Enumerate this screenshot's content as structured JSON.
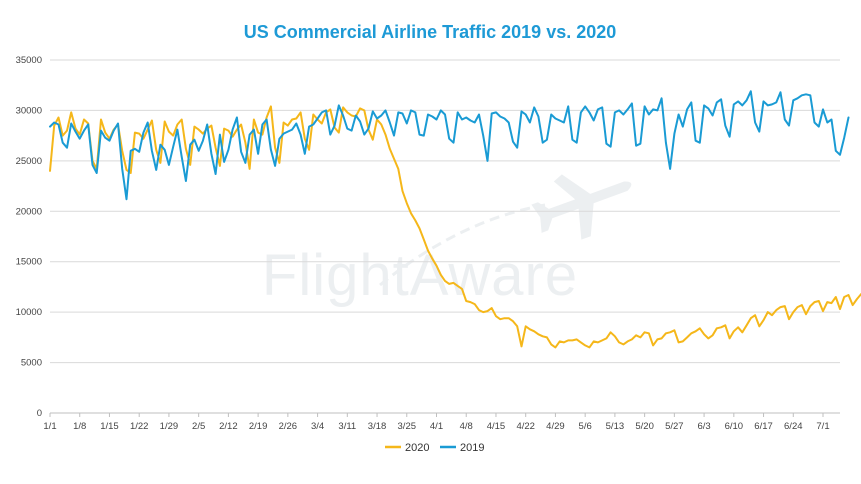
{
  "chart_data": {
    "type": "line",
    "title": "US Commercial Airline Traffic 2019 vs. 2020",
    "xlabel": "",
    "ylabel": "",
    "ylim": [
      0,
      35000
    ],
    "yticks": [
      0,
      5000,
      10000,
      15000,
      20000,
      25000,
      30000,
      35000
    ],
    "xticks": [
      {
        "day": 0,
        "label": "1/1"
      },
      {
        "day": 7,
        "label": "1/8"
      },
      {
        "day": 14,
        "label": "1/15"
      },
      {
        "day": 21,
        "label": "1/22"
      },
      {
        "day": 28,
        "label": "1/29"
      },
      {
        "day": 35,
        "label": "2/5"
      },
      {
        "day": 42,
        "label": "2/12"
      },
      {
        "day": 49,
        "label": "2/19"
      },
      {
        "day": 56,
        "label": "2/26"
      },
      {
        "day": 63,
        "label": "3/4"
      },
      {
        "day": 70,
        "label": "3/11"
      },
      {
        "day": 77,
        "label": "3/18"
      },
      {
        "day": 84,
        "label": "3/25"
      },
      {
        "day": 91,
        "label": "4/1"
      },
      {
        "day": 98,
        "label": "4/8"
      },
      {
        "day": 105,
        "label": "4/15"
      },
      {
        "day": 112,
        "label": "4/22"
      },
      {
        "day": 119,
        "label": "4/29"
      },
      {
        "day": 126,
        "label": "5/6"
      },
      {
        "day": 133,
        "label": "5/13"
      },
      {
        "day": 140,
        "label": "5/20"
      },
      {
        "day": 147,
        "label": "5/27"
      },
      {
        "day": 154,
        "label": "6/3"
      },
      {
        "day": 161,
        "label": "6/10"
      },
      {
        "day": 168,
        "label": "6/17"
      },
      {
        "day": 175,
        "label": "6/24"
      },
      {
        "day": 182,
        "label": "7/1"
      }
    ],
    "x_range": [
      0,
      186
    ],
    "grid": "horizontal",
    "legend_position": "bottom-center",
    "watermark": "FlightAware",
    "series": [
      {
        "name": "2020",
        "color": "#f5b71a",
        "values": [
          24000,
          28500,
          29300,
          27500,
          28000,
          29800,
          28200,
          27600,
          29100,
          28700,
          25000,
          24200,
          29100,
          27800,
          27200,
          28100,
          28600,
          26000,
          24100,
          23800,
          27800,
          27700,
          27200,
          28100,
          29000,
          26100,
          24800,
          28900,
          27900,
          27500,
          28600,
          29100,
          26200,
          24600,
          28400,
          28100,
          27700,
          28200,
          28500,
          26300,
          24500,
          28200,
          28000,
          27400,
          28100,
          28600,
          26800,
          24200,
          29100,
          27800,
          27600,
          29300,
          30400,
          26300,
          24800,
          28800,
          28500,
          29100,
          29200,
          29800,
          27200,
          26100,
          29600,
          29100,
          28700,
          29800,
          30100,
          28300,
          27800,
          30300,
          29800,
          29500,
          29400,
          30200,
          30000,
          28100,
          27100,
          29100,
          28600,
          27600,
          26200,
          25200,
          24200,
          22000,
          20800,
          19800,
          19100,
          18300,
          17200,
          16100,
          15300,
          14600,
          13700,
          13100,
          12800,
          12900,
          12600,
          12300,
          11100,
          11000,
          10800,
          10200,
          10000,
          10100,
          10400,
          9600,
          9300,
          9400,
          9400,
          9100,
          8600,
          6600,
          8600,
          8300,
          8100,
          7800,
          7600,
          7500,
          6800,
          6500,
          7100,
          7000,
          7200,
          7200,
          7300,
          7000,
          6700,
          6500,
          7100,
          7000,
          7200,
          7400,
          8000,
          7600,
          7000,
          6800,
          7100,
          7300,
          7700,
          7500,
          8000,
          7900,
          6700,
          7300,
          7400,
          7900,
          8000,
          8200,
          7000,
          7100,
          7500,
          7900,
          8100,
          8400,
          7800,
          7400,
          7700,
          8400,
          8500,
          8700,
          7400,
          8100,
          8500,
          8000,
          8700,
          9400,
          9700,
          8600,
          9200,
          10000,
          9700,
          10200,
          10500,
          10600,
          9300,
          10000,
          10500,
          10700,
          9800,
          10600,
          11000,
          11100,
          10100,
          11000,
          10900,
          11500,
          10300,
          11500,
          11700,
          10700,
          11300,
          11800,
          10800,
          12900,
          13500,
          13600,
          11000,
          12200
        ]
      },
      {
        "name": "2019",
        "color": "#1a9bd4",
        "values": [
          28400,
          28800,
          28600,
          26800,
          26300,
          28700,
          27900,
          27200,
          28000,
          28600,
          24600,
          23800,
          28000,
          27300,
          27000,
          28000,
          28700,
          24200,
          21200,
          26000,
          26200,
          25900,
          27800,
          28800,
          26000,
          24100,
          26600,
          26100,
          24600,
          26400,
          28100,
          25400,
          23000,
          26600,
          27100,
          26000,
          27000,
          28600,
          25700,
          23700,
          27600,
          24900,
          26100,
          28100,
          29300,
          25900,
          24800,
          27600,
          28100,
          25700,
          28600,
          29100,
          26100,
          24500,
          27200,
          27700,
          27900,
          28100,
          28700,
          27600,
          25700,
          28400,
          28600,
          29200,
          29800,
          30000,
          27600,
          28500,
          30500,
          29500,
          28200,
          28000,
          29500,
          28900,
          27600,
          28200,
          29900,
          29200,
          29500,
          30000,
          28800,
          27500,
          29800,
          29700,
          28700,
          30000,
          29800,
          27600,
          27500,
          29600,
          29400,
          29100,
          30000,
          29600,
          27200,
          26800,
          29800,
          29100,
          29300,
          29000,
          28800,
          29600,
          27500,
          25000,
          29700,
          29800,
          29400,
          29200,
          28800,
          26900,
          26300,
          29900,
          29600,
          28800,
          30300,
          29400,
          26800,
          27100,
          29600,
          29200,
          29000,
          28800,
          30400,
          27100,
          26800,
          29800,
          30400,
          29800,
          29000,
          30100,
          30300,
          26700,
          26400,
          29800,
          30000,
          29600,
          30100,
          30700,
          26500,
          26700,
          30400,
          29600,
          30100,
          30000,
          31200,
          26800,
          24200,
          27700,
          29600,
          28400,
          30100,
          30800,
          27000,
          26800,
          30500,
          30200,
          29500,
          30800,
          31100,
          28500,
          27400,
          30600,
          30900,
          30500,
          31000,
          31900,
          28800,
          27900,
          30900,
          30500,
          30600,
          30800,
          31800,
          29100,
          28500,
          31000,
          31200,
          31500,
          31600,
          31500,
          28800,
          28400,
          30100,
          28800,
          29100,
          26000,
          25600,
          27300,
          29300
        ]
      }
    ]
  }
}
